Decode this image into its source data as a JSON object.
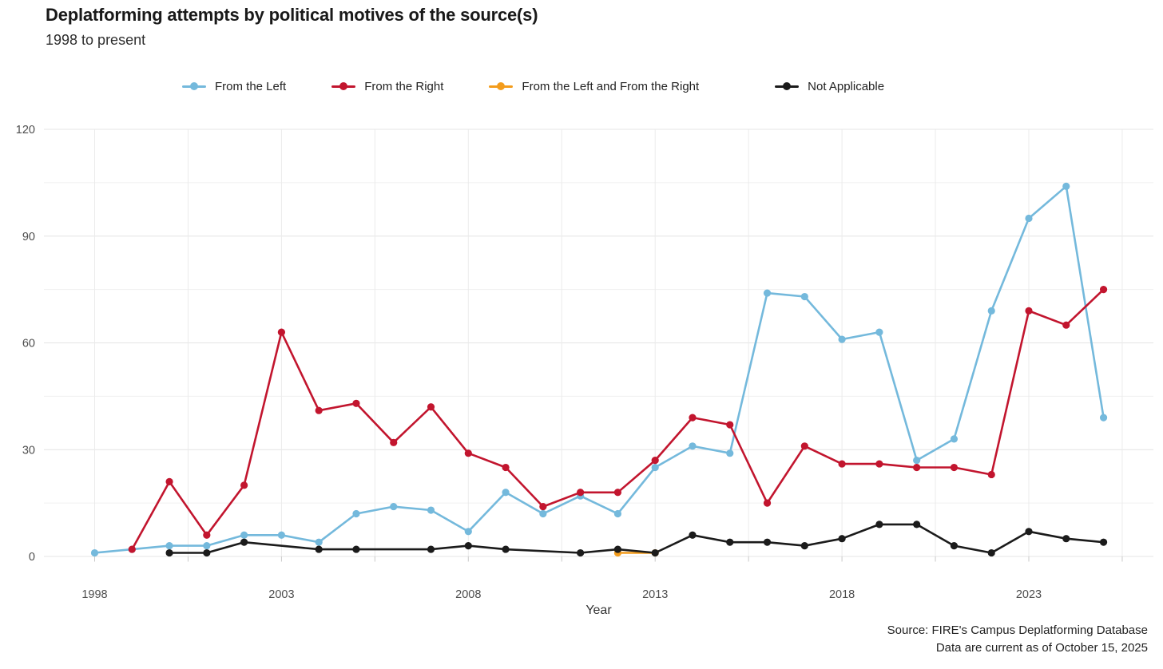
{
  "title": "Deplatforming attempts by political motives of the source(s)",
  "subtitle": "1998 to present",
  "legend": {
    "items": [
      {
        "label": "From the Left",
        "color": "#74B9DC"
      },
      {
        "label": "From the Right",
        "color": "#C2152E"
      },
      {
        "label": "From the Left and From the Right",
        "color": "#F39C1C"
      },
      {
        "label": "Not Applicable",
        "color": "#1B1B1B"
      }
    ]
  },
  "chart_data": {
    "type": "line",
    "x": [
      1998,
      1999,
      2000,
      2001,
      2002,
      2003,
      2004,
      2005,
      2006,
      2007,
      2008,
      2009,
      2010,
      2011,
      2012,
      2013,
      2014,
      2015,
      2016,
      2017,
      2018,
      2019,
      2020,
      2021,
      2022,
      2023,
      2024,
      2025
    ],
    "series": [
      {
        "name": "From the Left",
        "color": "#74B9DC",
        "values": [
          1,
          2,
          3,
          3,
          6,
          6,
          4,
          12,
          14,
          13,
          7,
          18,
          12,
          17,
          12,
          25,
          31,
          29,
          74,
          73,
          61,
          63,
          27,
          33,
          69,
          95,
          104,
          39
        ]
      },
      {
        "name": "From the Right",
        "color": "#C2152E",
        "values": [
          null,
          2,
          21,
          6,
          20,
          63,
          41,
          43,
          32,
          42,
          29,
          25,
          14,
          18,
          18,
          27,
          39,
          37,
          15,
          31,
          26,
          26,
          25,
          25,
          23,
          69,
          65,
          75
        ]
      },
      {
        "name": "From the Left and From the Right",
        "color": "#F39C1C",
        "values": [
          null,
          null,
          null,
          null,
          null,
          null,
          null,
          null,
          null,
          null,
          null,
          null,
          null,
          null,
          1,
          1,
          null,
          null,
          null,
          null,
          null,
          null,
          null,
          null,
          null,
          null,
          null,
          null
        ]
      },
      {
        "name": "Not Applicable",
        "color": "#1B1B1B",
        "values": [
          null,
          null,
          1,
          1,
          4,
          null,
          2,
          2,
          null,
          2,
          3,
          2,
          null,
          1,
          2,
          1,
          6,
          4,
          4,
          3,
          5,
          9,
          9,
          3,
          1,
          7,
          5,
          4
        ]
      }
    ],
    "title": "Deplatforming attempts by political motives of the source(s)",
    "xlabel": "Year",
    "ylabel": "",
    "ylim": [
      0,
      120
    ],
    "yticks": [
      0,
      30,
      60,
      90,
      120
    ],
    "yticks_minor": [
      15,
      45,
      75,
      105
    ],
    "xticks": [
      1998,
      2003,
      2008,
      2013,
      2018,
      2023
    ],
    "x_grid": {
      "start": 1998,
      "end": 2025.5,
      "step": 2.5
    },
    "grid": true,
    "legend_position": "top"
  },
  "footer": {
    "source_line1": "Source: FIRE's Campus Deplatforming Database",
    "source_line2": "Data are current as of October 15, 2025"
  }
}
